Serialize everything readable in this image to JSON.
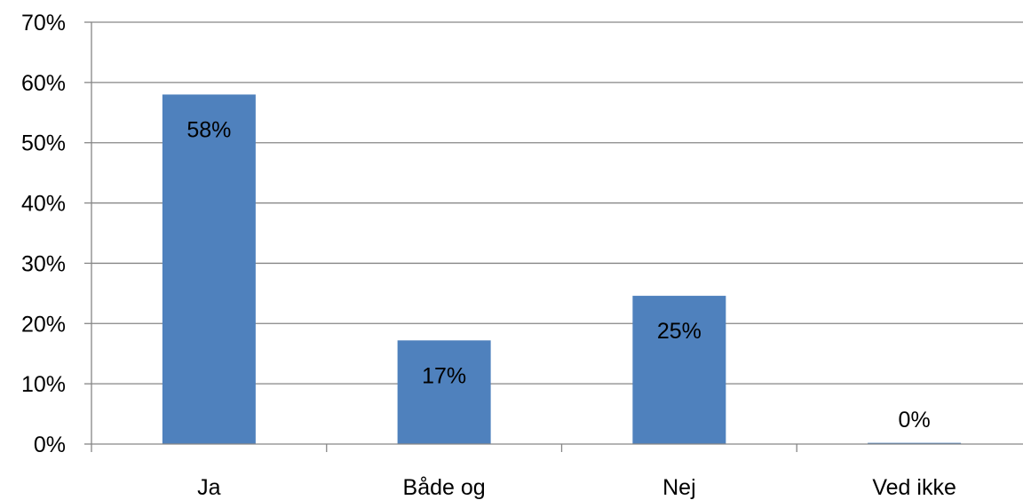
{
  "chart_data": {
    "type": "bar",
    "categories": [
      "Ja",
      "Både og",
      "Nej",
      "Ved ikke"
    ],
    "series": [
      {
        "values": [
          58,
          17.2,
          24.6,
          0.2
        ],
        "data_labels": [
          "58%",
          "17%",
          "25%",
          "0%"
        ],
        "color": "#4f81bd"
      }
    ],
    "title": "",
    "xlabel": "",
    "ylabel": "",
    "ylim": [
      0,
      70
    ],
    "y_ticks": [
      0,
      10,
      20,
      30,
      40,
      50,
      60,
      70
    ],
    "y_tick_labels": [
      "0%",
      "10%",
      "20%",
      "30%",
      "40%",
      "50%",
      "60%",
      "70%"
    ],
    "grid": true,
    "legend": "none",
    "colors": {
      "bar": "#4f81bd",
      "grid": "#868686",
      "text": "#000000"
    }
  }
}
